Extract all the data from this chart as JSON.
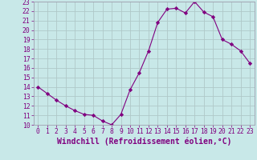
{
  "x": [
    0,
    1,
    2,
    3,
    4,
    5,
    6,
    7,
    8,
    9,
    10,
    11,
    12,
    13,
    14,
    15,
    16,
    17,
    18,
    19,
    20,
    21,
    22,
    23
  ],
  "y": [
    14.0,
    13.3,
    12.6,
    12.0,
    11.5,
    11.1,
    11.0,
    10.4,
    10.0,
    11.1,
    13.7,
    15.5,
    17.8,
    20.8,
    22.2,
    22.3,
    21.8,
    23.0,
    21.9,
    21.4,
    19.0,
    18.5,
    17.8,
    16.5
  ],
  "line_color": "#800080",
  "marker": "D",
  "marker_size": 2.2,
  "bg_color": "#c8e8e8",
  "grid_color": "#b0c8c8",
  "xlabel": "Windchill (Refroidissement éolien,°C)",
  "ylim": [
    10,
    23
  ],
  "xlim": [
    -0.5,
    23.5
  ],
  "yticks": [
    10,
    11,
    12,
    13,
    14,
    15,
    16,
    17,
    18,
    19,
    20,
    21,
    22,
    23
  ],
  "xticks": [
    0,
    1,
    2,
    3,
    4,
    5,
    6,
    7,
    8,
    9,
    10,
    11,
    12,
    13,
    14,
    15,
    16,
    17,
    18,
    19,
    20,
    21,
    22,
    23
  ],
  "tick_fontsize": 5.8,
  "xlabel_fontsize": 7.0,
  "label_color": "#800080",
  "spine_color": "#a0a0b0"
}
